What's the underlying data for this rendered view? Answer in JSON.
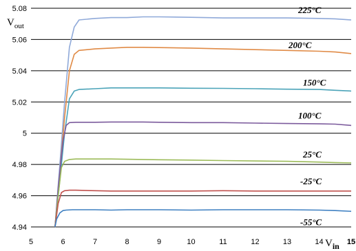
{
  "chart_data": {
    "type": "line",
    "ylabel": "Vout",
    "xlabel": "Vin",
    "xlim": [
      5,
      15
    ],
    "ylim": [
      4.94,
      5.08
    ],
    "xticks": [
      "5",
      "6",
      "7",
      "8",
      "9",
      "10",
      "11",
      "12",
      "13",
      "14",
      "15"
    ],
    "yticks": [
      "4.94",
      "4.96",
      "4.98",
      "5",
      "5.02",
      "5.04",
      "5.06",
      "5.08"
    ],
    "grid": "horizontal",
    "legend": "inline labels at right",
    "series": [
      {
        "name": "225°C",
        "color": "#8fa9d9",
        "x": [
          5.75,
          5.9,
          6.05,
          6.2,
          6.35,
          6.5,
          7,
          7.5,
          8,
          8.5,
          9,
          10,
          11,
          12,
          13,
          14,
          14.5,
          15
        ],
        "y": [
          4.94,
          4.98,
          5.02,
          5.055,
          5.068,
          5.0725,
          5.0735,
          5.074,
          5.074,
          5.0745,
          5.0745,
          5.0742,
          5.0738,
          5.0738,
          5.0738,
          5.0735,
          5.0732,
          5.0725
        ]
      },
      {
        "name": "200°C",
        "color": "#e08a45",
        "x": [
          5.75,
          5.9,
          6.05,
          6.2,
          6.35,
          6.5,
          7,
          7.5,
          8,
          8.5,
          9,
          10,
          11,
          12,
          13,
          14,
          14.5,
          15
        ],
        "y": [
          4.94,
          4.975,
          5.01,
          5.04,
          5.0505,
          5.053,
          5.054,
          5.0545,
          5.055,
          5.055,
          5.0548,
          5.0545,
          5.054,
          5.0535,
          5.053,
          5.0525,
          5.052,
          5.051
        ]
      },
      {
        "name": "150°C",
        "color": "#4aa3b8",
        "x": [
          5.75,
          5.9,
          6.05,
          6.2,
          6.35,
          6.5,
          7,
          7.5,
          8,
          8.5,
          9,
          10,
          11,
          12,
          13,
          14,
          14.5,
          15
        ],
        "y": [
          4.94,
          4.97,
          5.0,
          5.022,
          5.027,
          5.028,
          5.0285,
          5.029,
          5.029,
          5.029,
          5.029,
          5.0288,
          5.0287,
          5.0285,
          5.0282,
          5.028,
          5.0275,
          5.027
        ]
      },
      {
        "name": "100°C",
        "color": "#7b5a9c",
        "x": [
          5.75,
          5.85,
          6.0,
          6.1,
          6.2,
          6.4,
          7,
          7.5,
          8,
          8.5,
          9,
          10,
          11,
          12,
          13,
          14,
          14.5,
          15
        ],
        "y": [
          4.94,
          4.965,
          4.995,
          5.005,
          5.0068,
          5.007,
          5.007,
          5.0072,
          5.0072,
          5.0072,
          5.007,
          5.0068,
          5.0068,
          5.0065,
          5.0062,
          5.006,
          5.0058,
          5.005
        ]
      },
      {
        "name": "25°C",
        "color": "#9cbb59",
        "x": [
          5.75,
          5.85,
          5.95,
          6.05,
          6.2,
          6.4,
          7,
          7.5,
          8,
          8.5,
          9,
          10,
          11,
          12,
          13,
          14,
          14.5,
          15
        ],
        "y": [
          4.94,
          4.96,
          4.978,
          4.982,
          4.9832,
          4.9835,
          4.9835,
          4.9835,
          4.9833,
          4.9832,
          4.983,
          4.9828,
          4.9825,
          4.9822,
          4.982,
          4.9815,
          4.9812,
          4.981
        ]
      },
      {
        "name": "-25°C",
        "color": "#c0504d",
        "x": [
          5.75,
          5.85,
          5.95,
          6.05,
          6.2,
          6.4,
          7,
          7.5,
          8,
          8.5,
          9,
          10,
          11,
          12,
          13,
          14,
          14.5,
          15
        ],
        "y": [
          4.94,
          4.955,
          4.962,
          4.9632,
          4.9635,
          4.9635,
          4.9632,
          4.963,
          4.963,
          4.963,
          4.963,
          4.963,
          4.9632,
          4.963,
          4.963,
          4.963,
          4.963,
          4.963
        ]
      },
      {
        "name": "-55°C",
        "color": "#3d7fc1",
        "x": [
          5.75,
          5.8,
          5.9,
          6.0,
          6.1,
          6.3,
          7,
          7.5,
          8,
          8.5,
          9,
          10,
          11,
          12,
          13,
          14,
          14.5,
          15
        ],
        "y": [
          4.94,
          4.945,
          4.949,
          4.9505,
          4.9508,
          4.951,
          4.951,
          4.9508,
          4.951,
          4.951,
          4.951,
          4.9508,
          4.951,
          4.951,
          4.951,
          4.9508,
          4.9505,
          4.95
        ]
      }
    ]
  }
}
